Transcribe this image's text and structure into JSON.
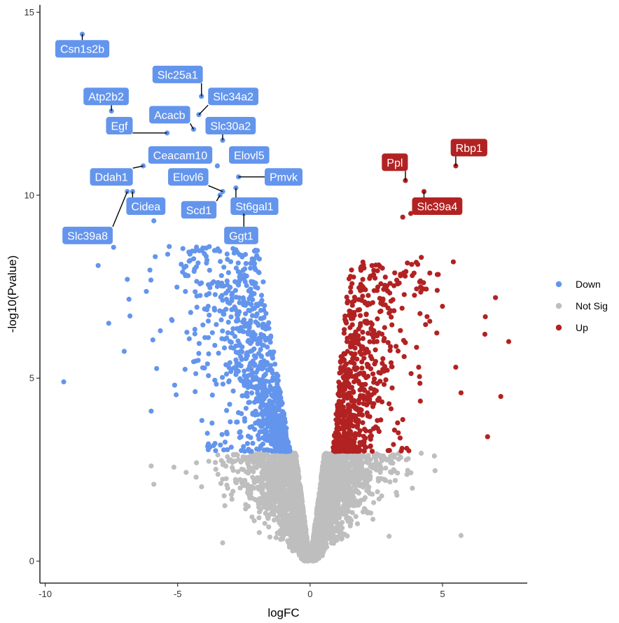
{
  "chart_data": {
    "type": "scatter",
    "title": "",
    "xlabel": "logFC",
    "ylabel": "-log10(Pvalue)",
    "xlim": [
      -10.2,
      8.2
    ],
    "ylim": [
      -0.6,
      15.2
    ],
    "xticks": [
      -10,
      -5,
      0,
      5
    ],
    "xtick_labels": [
      "-10",
      "-5",
      "0",
      "5"
    ],
    "yticks": [
      0,
      5,
      10,
      15
    ],
    "ytick_labels": [
      "0",
      "5",
      "10",
      "15"
    ],
    "grid": false,
    "legend_position": "right",
    "legend": [
      {
        "label": "Down",
        "color": "#6495ED"
      },
      {
        "label": "Not Sig",
        "color": "#BEBEBE"
      },
      {
        "label": "Up",
        "color": "#B22222"
      }
    ],
    "series": [
      {
        "name": "Down",
        "color": "#6495ED"
      },
      {
        "name": "Not Sig",
        "color": "#BEBEBE"
      },
      {
        "name": "Up",
        "color": "#B22222"
      }
    ],
    "labeled_genes": [
      {
        "gene": "Csn1s2b",
        "x": -8.6,
        "y": 14.4,
        "group": "Down",
        "label_x": -8.6,
        "label_y": 14.0
      },
      {
        "gene": "Slc25a1",
        "x": -4.1,
        "y": 12.7,
        "group": "Down",
        "label_x": -5.0,
        "label_y": 13.3
      },
      {
        "gene": "Slc34a2",
        "x": -4.2,
        "y": 12.2,
        "group": "Down",
        "label_x": -2.9,
        "label_y": 12.7
      },
      {
        "gene": "Atp2b2",
        "x": -7.5,
        "y": 12.3,
        "group": "Down",
        "label_x": -7.7,
        "label_y": 12.7
      },
      {
        "gene": "Acacb",
        "x": -4.4,
        "y": 11.8,
        "group": "Down",
        "label_x": -5.3,
        "label_y": 12.2
      },
      {
        "gene": "Slc30a2",
        "x": -3.3,
        "y": 11.5,
        "group": "Down",
        "label_x": -3.0,
        "label_y": 11.9
      },
      {
        "gene": "Egf",
        "x": -5.4,
        "y": 11.7,
        "group": "Down",
        "label_x": -7.2,
        "label_y": 11.9
      },
      {
        "gene": "Ceacam10",
        "x": -3.5,
        "y": 10.8,
        "group": "Down",
        "label_x": -4.9,
        "label_y": 11.1
      },
      {
        "gene": "Elovl5",
        "x": -2.9,
        "y": 11.1,
        "group": "Down",
        "label_x": -2.3,
        "label_y": 11.1
      },
      {
        "gene": "Ddah1",
        "x": -6.3,
        "y": 10.8,
        "group": "Down",
        "label_x": -7.5,
        "label_y": 10.5
      },
      {
        "gene": "Elovl6",
        "x": -3.3,
        "y": 10.1,
        "group": "Down",
        "label_x": -4.6,
        "label_y": 10.5
      },
      {
        "gene": "Pmvk",
        "x": -2.7,
        "y": 10.5,
        "group": "Down",
        "label_x": -1.0,
        "label_y": 10.5
      },
      {
        "gene": "Cidea",
        "x": -6.7,
        "y": 10.1,
        "group": "Down",
        "label_x": -6.2,
        "label_y": 9.7
      },
      {
        "gene": "Scd1",
        "x": -3.4,
        "y": 10.0,
        "group": "Down",
        "label_x": -4.2,
        "label_y": 9.6
      },
      {
        "gene": "St6gal1",
        "x": -2.8,
        "y": 10.2,
        "group": "Down",
        "label_x": -2.1,
        "label_y": 9.7
      },
      {
        "gene": "Slc39a8",
        "x": -6.9,
        "y": 10.1,
        "group": "Down",
        "label_x": -8.4,
        "label_y": 8.9
      },
      {
        "gene": "Ggt1",
        "x": -2.5,
        "y": 9.5,
        "group": "Down",
        "label_x": -2.6,
        "label_y": 8.9
      },
      {
        "gene": "Rbp1",
        "x": 5.5,
        "y": 10.8,
        "group": "Up",
        "label_x": 6.0,
        "label_y": 11.3
      },
      {
        "gene": "Ppl",
        "x": 3.6,
        "y": 10.4,
        "group": "Up",
        "label_x": 3.2,
        "label_y": 10.9
      },
      {
        "gene": "Slc39a4",
        "x": 4.3,
        "y": 10.1,
        "group": "Up",
        "label_x": 4.8,
        "label_y": 9.7
      }
    ]
  }
}
